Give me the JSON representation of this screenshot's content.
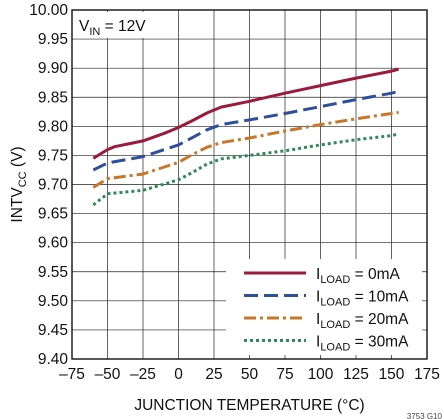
{
  "chart_data": {
    "type": "line",
    "xlabel": "JUNCTION TEMPERATURE (°C)",
    "ylabel_main": "INTV",
    "ylabel_sub": "CC",
    "ylabel_tail": " (V)",
    "xlim": [
      -75,
      175
    ],
    "ylim": [
      9.4,
      10.0
    ],
    "xticks": [
      -75,
      -50,
      -25,
      0,
      25,
      50,
      75,
      100,
      125,
      150,
      175
    ],
    "xtick_labels": [
      "–75",
      "–50",
      "–25",
      "0",
      "25",
      "50",
      "75",
      "100",
      "125",
      "150",
      "175"
    ],
    "yticks": [
      9.4,
      9.45,
      9.5,
      9.55,
      9.6,
      9.65,
      9.7,
      9.75,
      9.8,
      9.85,
      9.9,
      9.95,
      10.0
    ],
    "ytick_labels": [
      "9.40",
      "9.45",
      "9.50",
      "9.55",
      "9.60",
      "9.65",
      "9.70",
      "9.75",
      "9.80",
      "9.85",
      "9.90",
      "9.95",
      "10.00"
    ],
    "grid": true,
    "annotation": {
      "main": "V",
      "sub": "IN",
      "tail": " = 12V"
    },
    "legend_position": "bottom-right",
    "figure_id": "3753 G10",
    "series": [
      {
        "legend_main": "I",
        "legend_sub": "LOAD",
        "legend_tail": " = 0mA",
        "color": "#9b1b3c",
        "dash": "",
        "x": [
          -60,
          -50,
          -45,
          -25,
          -10,
          0,
          10,
          20,
          30,
          50,
          75,
          100,
          125,
          150,
          155
        ],
        "y": [
          9.745,
          9.76,
          9.765,
          9.775,
          9.788,
          9.798,
          9.81,
          9.823,
          9.833,
          9.843,
          9.857,
          9.87,
          9.883,
          9.895,
          9.898
        ]
      },
      {
        "legend_main": "I",
        "legend_sub": "LOAD",
        "legend_tail": " = 10mA",
        "color": "#2f4f9c",
        "dash": "14,6",
        "x": [
          -60,
          -50,
          -25,
          0,
          10,
          20,
          30,
          50,
          75,
          100,
          125,
          150,
          155
        ],
        "y": [
          9.725,
          9.737,
          9.748,
          9.768,
          9.781,
          9.794,
          9.803,
          9.811,
          9.822,
          9.834,
          9.846,
          9.857,
          9.86
        ]
      },
      {
        "legend_main": "I",
        "legend_sub": "LOAD",
        "legend_tail": " = 20mA",
        "color": "#c8772a",
        "dash": "12,4,3,4",
        "x": [
          -60,
          -50,
          -25,
          0,
          10,
          20,
          30,
          50,
          75,
          100,
          125,
          150,
          155
        ],
        "y": [
          9.695,
          9.71,
          9.718,
          9.738,
          9.752,
          9.764,
          9.772,
          9.78,
          9.792,
          9.803,
          9.813,
          9.822,
          9.824
        ]
      },
      {
        "legend_main": "I",
        "legend_sub": "LOAD",
        "legend_tail": " = 30mA",
        "color": "#2e8b57",
        "dash": "3,3",
        "x": [
          -60,
          -50,
          -25,
          0,
          10,
          20,
          30,
          50,
          75,
          100,
          125,
          150,
          155
        ],
        "y": [
          9.665,
          9.684,
          9.69,
          9.708,
          9.721,
          9.735,
          9.744,
          9.75,
          9.758,
          9.768,
          9.777,
          9.784,
          9.787
        ]
      }
    ]
  }
}
